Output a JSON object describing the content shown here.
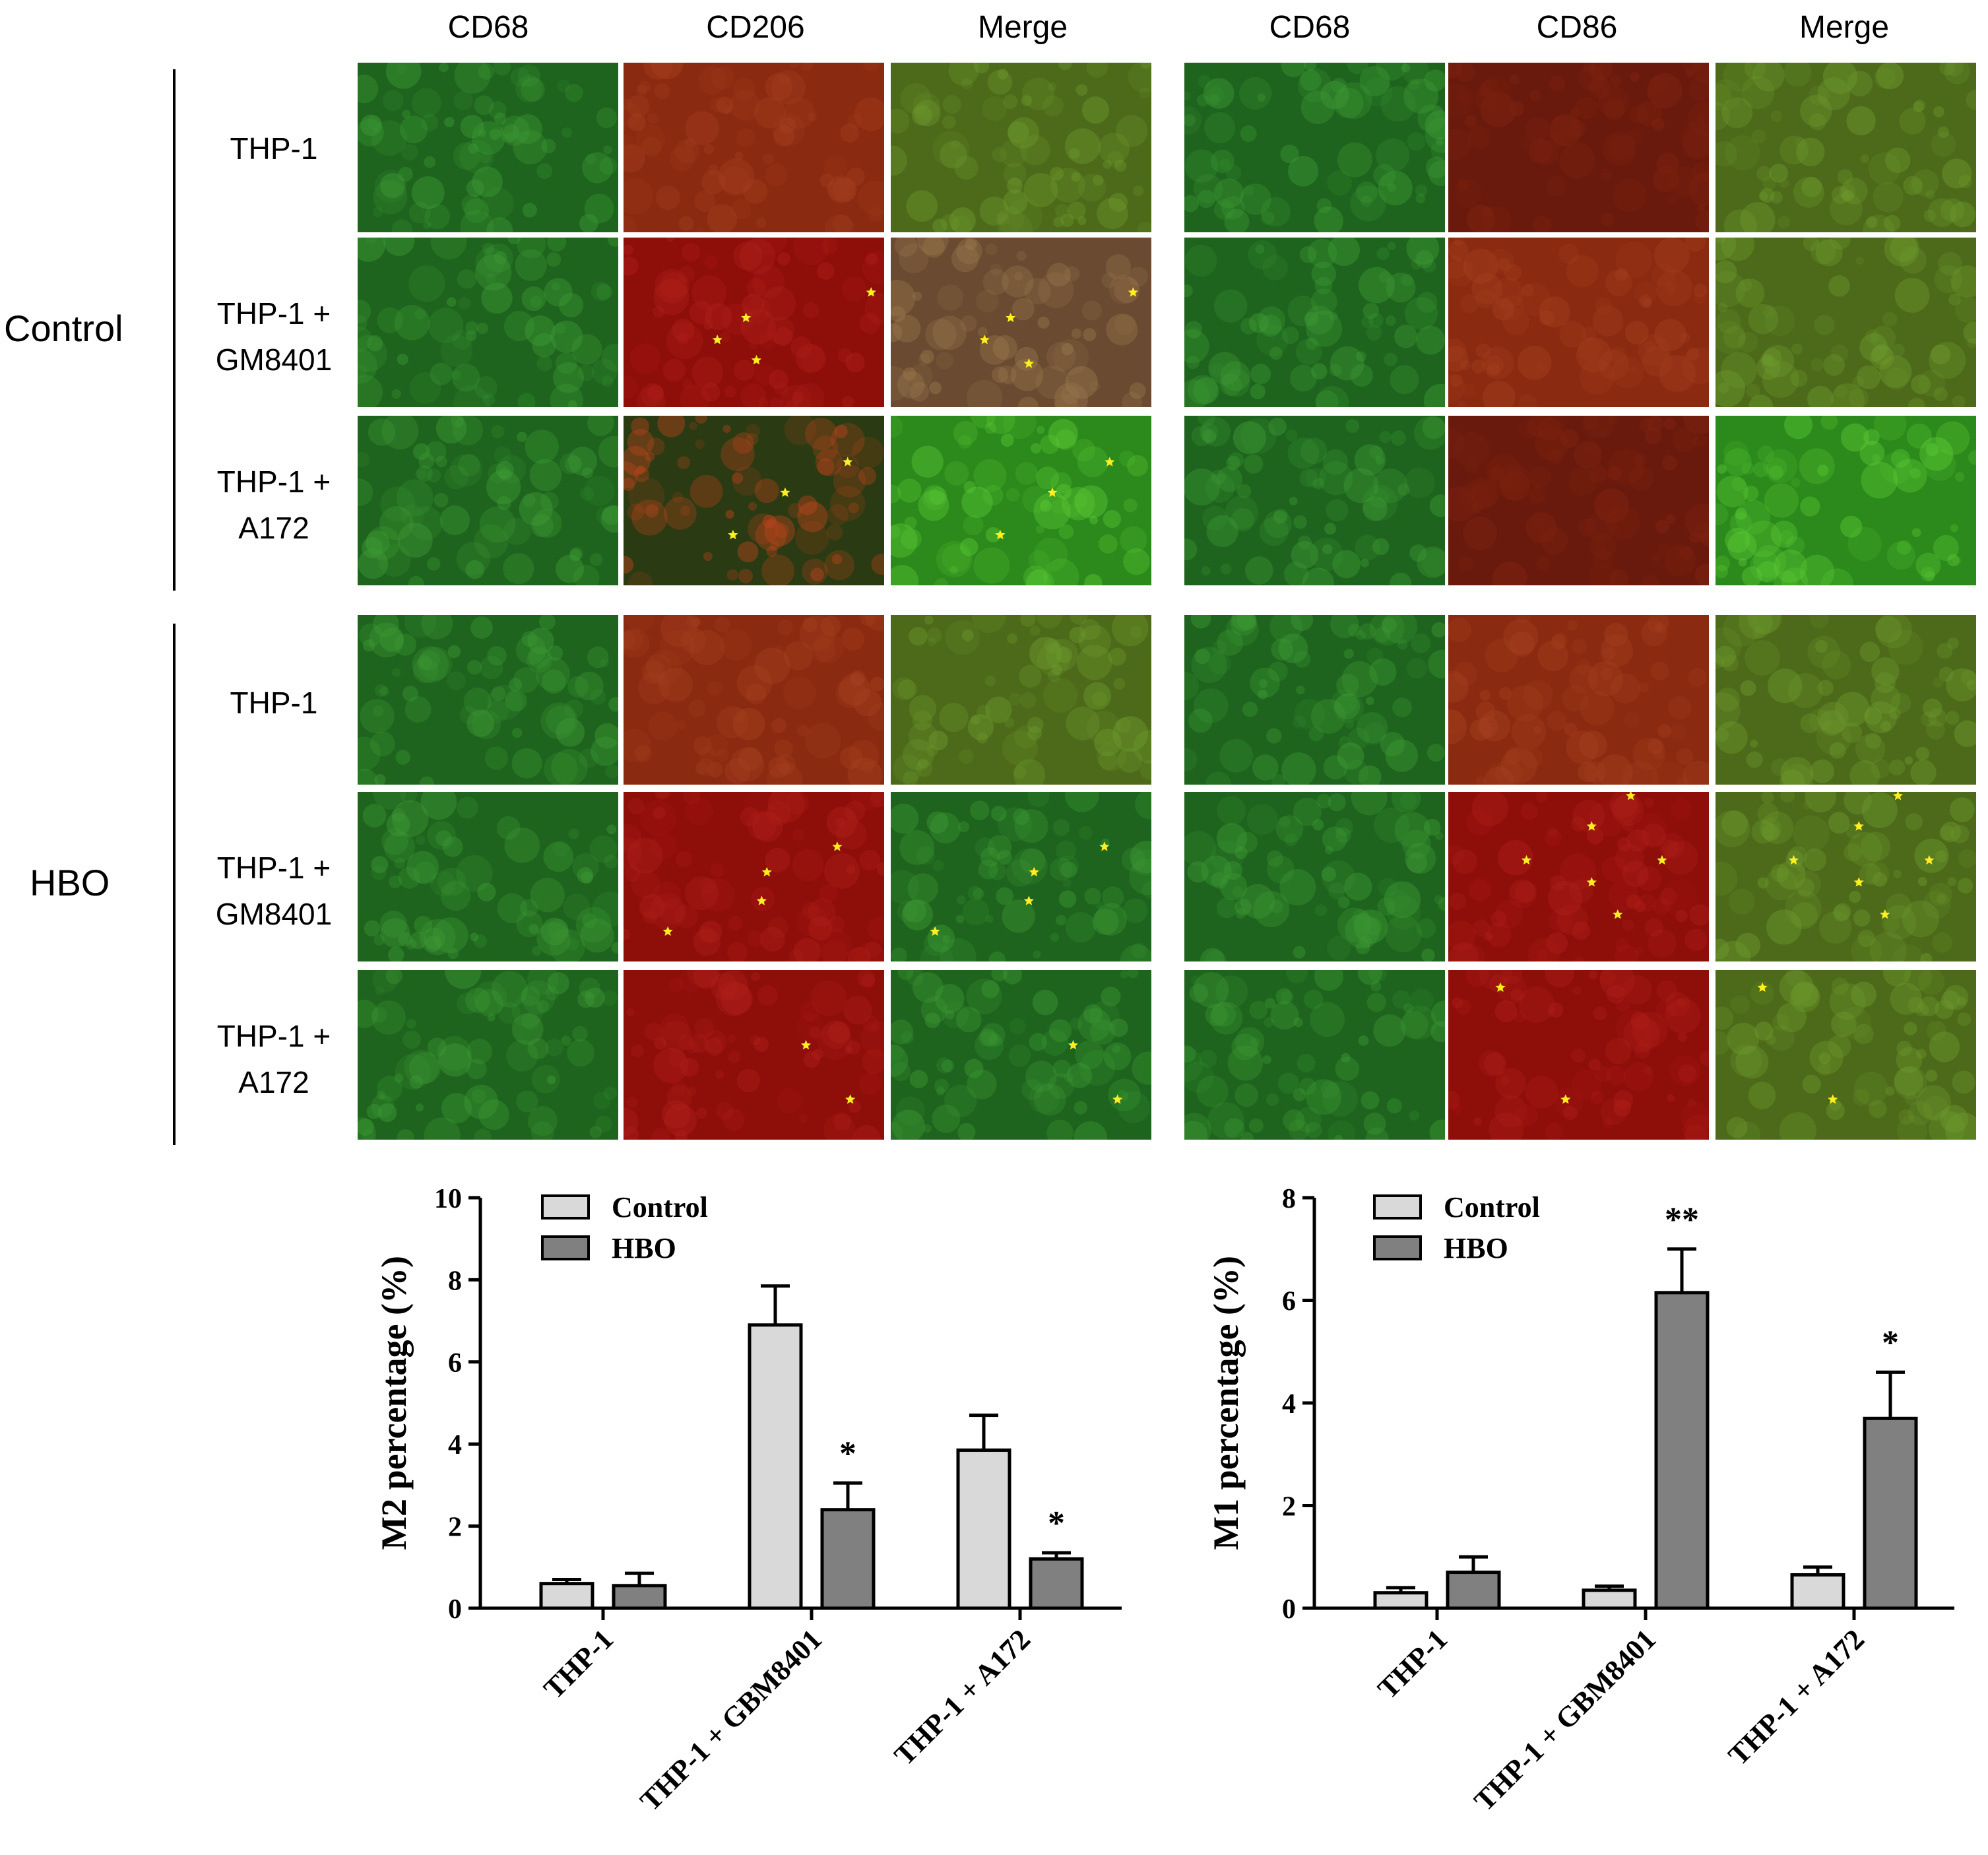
{
  "figure": {
    "column_headers": {
      "m2_block": [
        "CD68",
        "CD206",
        "Merge"
      ],
      "m1_block": [
        "CD68",
        "CD86",
        "Merge"
      ]
    },
    "groups": [
      {
        "label": "Control",
        "rows": [
          {
            "line1": "THP-1",
            "line2": ""
          },
          {
            "line1": "THP-1 +",
            "line2": "GM8401"
          },
          {
            "line1": "THP-1 +",
            "line2": "A172"
          }
        ]
      },
      {
        "label": "HBO",
        "rows": [
          {
            "line1": "THP-1",
            "line2": ""
          },
          {
            "line1": "THP-1 +",
            "line2": "GM8401"
          },
          {
            "line1": "THP-1 +",
            "line2": "A172"
          }
        ]
      }
    ],
    "marker_icon": "yellow-star-icon"
  },
  "colors": {
    "control_bar": "#d9d9d9",
    "hbo_bar": "#808080",
    "marker_star": "#ffee22",
    "green_channel": "#1f6e1f",
    "red_channel": "#7a1a0c"
  },
  "chart_data": [
    {
      "type": "bar",
      "title": "",
      "xlabel": "",
      "ylabel": "M2 percentage (%)",
      "ylim": [
        0,
        10
      ],
      "yticks": [
        "0",
        "2",
        "4",
        "6",
        "8",
        "10"
      ],
      "categories": [
        "THP-1",
        "THP-1 + GBM8401",
        "THP-1 + A172"
      ],
      "series": [
        {
          "name": "Control",
          "values": [
            0.6,
            6.9,
            3.85
          ],
          "errors": [
            0.1,
            0.95,
            0.85
          ]
        },
        {
          "name": "HBO",
          "values": [
            0.55,
            2.4,
            1.2
          ],
          "errors": [
            0.3,
            0.65,
            0.15
          ]
        }
      ],
      "annotations": [
        {
          "category": 1,
          "series": "HBO",
          "text": "*"
        },
        {
          "category": 2,
          "series": "HBO",
          "text": "*"
        }
      ],
      "legend_position": "top-left"
    },
    {
      "type": "bar",
      "title": "",
      "xlabel": "",
      "ylabel": "M1 percentage (%)",
      "ylim": [
        0,
        8
      ],
      "yticks": [
        "0",
        "2",
        "4",
        "6",
        "8"
      ],
      "categories": [
        "THP-1",
        "THP-1 + GBM8401",
        "THP-1 + A172"
      ],
      "series": [
        {
          "name": "Control",
          "values": [
            0.3,
            0.35,
            0.65
          ],
          "errors": [
            0.1,
            0.08,
            0.15
          ]
        },
        {
          "name": "HBO",
          "values": [
            0.7,
            6.15,
            3.7
          ],
          "errors": [
            0.3,
            0.85,
            0.9
          ]
        }
      ],
      "annotations": [
        {
          "category": 1,
          "series": "HBO",
          "text": "**"
        },
        {
          "category": 2,
          "series": "HBO",
          "text": "*"
        }
      ],
      "legend_position": "top-left"
    }
  ]
}
